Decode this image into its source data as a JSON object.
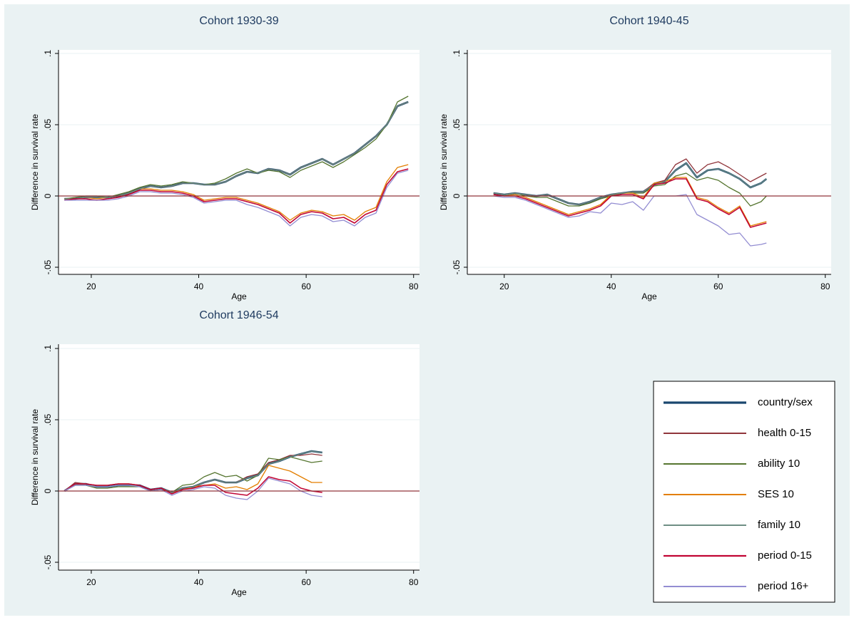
{
  "chart_data": [
    {
      "type": "line",
      "title": "Cohort 1930-39",
      "xlabel": "Age",
      "ylabel": "Difference in survival rate",
      "x": [
        15,
        17,
        19,
        21,
        23,
        25,
        27,
        29,
        31,
        33,
        35,
        37,
        39,
        41,
        43,
        45,
        47,
        49,
        51,
        53,
        55,
        57,
        59,
        61,
        63,
        65,
        67,
        69,
        71,
        73,
        75,
        77,
        79
      ],
      "xlim": [
        13.9,
        81.1
      ],
      "ylim": [
        -0.055,
        0.1025
      ],
      "xticks": [
        20,
        40,
        60,
        80
      ],
      "yticks": [
        {
          "value": -0.05,
          "label": "-.05"
        },
        0,
        {
          "value": 0.05,
          "label": ".05"
        },
        {
          "value": 0.1,
          "label": ".1"
        }
      ],
      "grid": true,
      "hline": 0,
      "series": [
        {
          "name": "country/sex",
          "color": "#1a476f",
          "width": 2.6,
          "values": [
            -0.002,
            -0.002,
            -0.001,
            -0.001,
            -0.001,
            0.0,
            0.002,
            0.005,
            0.007,
            0.006,
            0.007,
            0.009,
            0.009,
            0.008,
            0.008,
            0.01,
            0.014,
            0.017,
            0.016,
            0.019,
            0.018,
            0.015,
            0.02,
            0.023,
            0.026,
            0.022,
            0.026,
            0.03,
            0.036,
            0.042,
            0.05,
            0.063,
            0.066
          ]
        },
        {
          "name": "health 0-15",
          "color": "#90353b",
          "width": 1.3,
          "values": [
            -0.002,
            -0.002,
            -0.001,
            -0.001,
            -0.001,
            0.0,
            0.002,
            0.005,
            0.007,
            0.006,
            0.007,
            0.009,
            0.009,
            0.008,
            0.008,
            0.01,
            0.014,
            0.017,
            0.016,
            0.019,
            0.018,
            0.015,
            0.02,
            0.023,
            0.026,
            0.022,
            0.026,
            0.03,
            0.036,
            0.042,
            0.05,
            0.063,
            0.066
          ]
        },
        {
          "name": "ability 10",
          "color": "#55752f",
          "width": 1.3,
          "values": [
            -0.002,
            -0.001,
            0.0,
            0.0,
            -0.001,
            0.001,
            0.003,
            0.006,
            0.008,
            0.007,
            0.008,
            0.01,
            0.009,
            0.008,
            0.009,
            0.012,
            0.016,
            0.019,
            0.016,
            0.018,
            0.017,
            0.013,
            0.018,
            0.021,
            0.024,
            0.02,
            0.024,
            0.029,
            0.034,
            0.04,
            0.05,
            0.066,
            0.07
          ]
        },
        {
          "name": "SES 10",
          "color": "#e37e00",
          "width": 1.3,
          "values": [
            -0.002,
            -0.002,
            -0.001,
            -0.002,
            -0.001,
            0.0,
            0.002,
            0.005,
            0.005,
            0.004,
            0.004,
            0.003,
            0.001,
            -0.003,
            -0.002,
            -0.001,
            -0.001,
            -0.003,
            -0.005,
            -0.008,
            -0.011,
            -0.017,
            -0.012,
            -0.01,
            -0.011,
            -0.014,
            -0.013,
            -0.017,
            -0.011,
            -0.008,
            0.01,
            0.02,
            0.022
          ]
        },
        {
          "name": "family 10",
          "color": "#6e8e84",
          "width": 1.3,
          "values": [
            -0.002,
            -0.002,
            -0.001,
            -0.001,
            -0.001,
            0.0,
            0.002,
            0.005,
            0.007,
            0.006,
            0.007,
            0.009,
            0.009,
            0.008,
            0.008,
            0.01,
            0.014,
            0.017,
            0.016,
            0.019,
            0.018,
            0.015,
            0.02,
            0.023,
            0.026,
            0.022,
            0.026,
            0.03,
            0.036,
            0.042,
            0.05,
            0.063,
            0.066
          ]
        },
        {
          "name": "period 0-15",
          "color": "#c10534",
          "width": 1.6,
          "values": [
            -0.003,
            -0.002,
            -0.002,
            -0.003,
            -0.002,
            -0.001,
            0.001,
            0.004,
            0.004,
            0.003,
            0.003,
            0.002,
            0.0,
            -0.004,
            -0.003,
            -0.002,
            -0.002,
            -0.004,
            -0.006,
            -0.009,
            -0.012,
            -0.019,
            -0.013,
            -0.011,
            -0.012,
            -0.016,
            -0.015,
            -0.019,
            -0.013,
            -0.01,
            0.008,
            0.017,
            0.019
          ]
        },
        {
          "name": "period 16+",
          "color": "#938dd2",
          "width": 1.3,
          "values": [
            -0.003,
            -0.003,
            -0.003,
            -0.003,
            -0.003,
            -0.002,
            0.0,
            0.003,
            0.003,
            0.002,
            0.002,
            0.001,
            -0.001,
            -0.005,
            -0.004,
            -0.003,
            -0.003,
            -0.006,
            -0.008,
            -0.011,
            -0.014,
            -0.021,
            -0.015,
            -0.013,
            -0.014,
            -0.018,
            -0.017,
            -0.021,
            -0.015,
            -0.012,
            0.006,
            0.016,
            0.018
          ]
        }
      ]
    },
    {
      "type": "line",
      "title": "Cohort 1940-45",
      "xlabel": "Age",
      "ylabel": "Difference in survival rate",
      "x": [
        18,
        20,
        22,
        24,
        26,
        28,
        30,
        32,
        34,
        36,
        38,
        40,
        42,
        44,
        46,
        48,
        50,
        52,
        54,
        56,
        58,
        60,
        62,
        64,
        66,
        68,
        69
      ],
      "xlim": [
        13.1,
        81.1
      ],
      "ylim": [
        -0.055,
        0.1025
      ],
      "xticks": [
        20,
        40,
        60,
        80
      ],
      "yticks": [
        {
          "value": -0.05,
          "label": "-.05"
        },
        0,
        {
          "value": 0.05,
          "label": ".05"
        },
        {
          "value": 0.1,
          "label": ".1"
        }
      ],
      "grid": true,
      "hline": 0,
      "series": [
        {
          "name": "country/sex",
          "color": "#1a476f",
          "width": 2.6,
          "values": [
            0.002,
            0.001,
            0.002,
            0.001,
            0.0,
            0.001,
            -0.002,
            -0.005,
            -0.006,
            -0.004,
            -0.001,
            0.001,
            0.002,
            0.003,
            0.003,
            0.008,
            0.01,
            0.018,
            0.023,
            0.013,
            0.018,
            0.019,
            0.016,
            0.012,
            0.006,
            0.009,
            0.012
          ]
        },
        {
          "name": "health 0-15",
          "color": "#90353b",
          "width": 1.3,
          "values": [
            0.002,
            0.001,
            0.002,
            0.001,
            0.0,
            0.001,
            -0.002,
            -0.005,
            -0.006,
            -0.004,
            -0.001,
            0.001,
            0.002,
            0.003,
            0.003,
            0.009,
            0.011,
            0.022,
            0.026,
            0.016,
            0.022,
            0.024,
            0.02,
            0.015,
            0.01,
            0.014,
            0.016
          ]
        },
        {
          "name": "ability 10",
          "color": "#55752f",
          "width": 1.3,
          "values": [
            0.002,
            0.001,
            0.002,
            0.0,
            -0.001,
            -0.001,
            -0.004,
            -0.007,
            -0.007,
            -0.005,
            -0.002,
            0.0,
            0.002,
            0.002,
            0.002,
            0.007,
            0.008,
            0.014,
            0.016,
            0.011,
            0.013,
            0.011,
            0.006,
            0.002,
            -0.007,
            -0.004,
            0.0
          ]
        },
        {
          "name": "SES 10",
          "color": "#e37e00",
          "width": 1.3,
          "values": [
            0.001,
            0.0,
            0.001,
            -0.001,
            -0.004,
            -0.007,
            -0.01,
            -0.013,
            -0.011,
            -0.009,
            -0.006,
            0.001,
            0.002,
            0.002,
            -0.001,
            0.009,
            0.01,
            0.013,
            0.013,
            -0.001,
            -0.003,
            -0.008,
            -0.012,
            -0.007,
            -0.021,
            -0.019,
            -0.018
          ]
        },
        {
          "name": "family 10",
          "color": "#6e8e84",
          "width": 1.3,
          "values": [
            0.002,
            0.001,
            0.002,
            0.001,
            0.0,
            0.001,
            -0.002,
            -0.005,
            -0.006,
            -0.004,
            -0.001,
            0.001,
            0.002,
            0.003,
            0.003,
            0.008,
            0.01,
            0.018,
            0.023,
            0.013,
            0.018,
            0.019,
            0.016,
            0.012,
            0.006,
            0.009,
            0.012
          ]
        },
        {
          "name": "period 0-15",
          "color": "#c10534",
          "width": 1.6,
          "values": [
            0.001,
            0.0,
            0.0,
            -0.002,
            -0.005,
            -0.008,
            -0.011,
            -0.014,
            -0.012,
            -0.01,
            -0.007,
            0.0,
            0.001,
            0.001,
            -0.002,
            0.008,
            0.009,
            0.012,
            0.012,
            -0.002,
            -0.004,
            -0.009,
            -0.013,
            -0.008,
            -0.022,
            -0.02,
            -0.019
          ]
        },
        {
          "name": "period 16+",
          "color": "#938dd2",
          "width": 1.3,
          "values": [
            0.0,
            -0.001,
            -0.001,
            -0.003,
            -0.006,
            -0.009,
            -0.012,
            -0.015,
            -0.014,
            -0.011,
            -0.012,
            -0.005,
            -0.006,
            -0.004,
            -0.01,
            0.0,
            0.0,
            0.0,
            0.001,
            -0.013,
            -0.017,
            -0.021,
            -0.027,
            -0.026,
            -0.035,
            -0.034,
            -0.033
          ]
        }
      ]
    },
    {
      "type": "line",
      "title": "Cohort 1946-54",
      "xlabel": "Age",
      "ylabel": "Difference in survival rate",
      "x": [
        15,
        17,
        19,
        21,
        23,
        25,
        27,
        29,
        31,
        33,
        35,
        37,
        39,
        41,
        43,
        45,
        47,
        49,
        51,
        53,
        55,
        57,
        59,
        61,
        63
      ],
      "xlim": [
        13.9,
        81.1
      ],
      "ylim": [
        -0.0555,
        0.103
      ],
      "xticks": [
        20,
        40,
        60,
        80
      ],
      "yticks": [
        {
          "value": -0.05,
          "label": "-.05"
        },
        0,
        {
          "value": 0.05,
          "label": ".05"
        },
        {
          "value": 0.1,
          "label": ".1"
        }
      ],
      "grid": true,
      "hline": 0,
      "legend": "lower-right",
      "series": [
        {
          "name": "country/sex",
          "color": "#1a476f",
          "width": 2.6,
          "values": [
            0.0,
            0.005,
            0.005,
            0.003,
            0.003,
            0.004,
            0.004,
            0.004,
            0.001,
            0.002,
            -0.001,
            0.002,
            0.003,
            0.006,
            0.008,
            0.006,
            0.006,
            0.009,
            0.011,
            0.019,
            0.021,
            0.024,
            0.026,
            0.028,
            0.027
          ]
        },
        {
          "name": "health 0-15",
          "color": "#90353b",
          "width": 1.3,
          "values": [
            0.0,
            0.006,
            0.005,
            0.004,
            0.004,
            0.005,
            0.005,
            0.004,
            0.001,
            0.002,
            -0.001,
            0.002,
            0.003,
            0.006,
            0.008,
            0.006,
            0.006,
            0.01,
            0.012,
            0.02,
            0.022,
            0.025,
            0.025,
            0.026,
            0.025
          ]
        },
        {
          "name": "ability 10",
          "color": "#55752f",
          "width": 1.3,
          "values": [
            0.0,
            0.004,
            0.004,
            0.002,
            0.002,
            0.003,
            0.003,
            0.003,
            0.0,
            0.001,
            -0.001,
            0.004,
            0.005,
            0.01,
            0.013,
            0.01,
            0.011,
            0.007,
            0.011,
            0.023,
            0.022,
            0.024,
            0.022,
            0.02,
            0.021
          ]
        },
        {
          "name": "SES 10",
          "color": "#e37e00",
          "width": 1.3,
          "values": [
            0.0,
            0.005,
            0.005,
            0.004,
            0.004,
            0.005,
            0.005,
            0.004,
            0.001,
            0.002,
            -0.001,
            0.001,
            0.003,
            0.004,
            0.005,
            0.002,
            0.003,
            0.001,
            0.005,
            0.018,
            0.016,
            0.014,
            0.01,
            0.006,
            0.006
          ]
        },
        {
          "name": "family 10",
          "color": "#6e8e84",
          "width": 1.3,
          "values": [
            0.0,
            0.005,
            0.005,
            0.003,
            0.003,
            0.004,
            0.004,
            0.004,
            0.001,
            0.002,
            -0.001,
            0.002,
            0.003,
            0.006,
            0.008,
            0.006,
            0.006,
            0.009,
            0.011,
            0.019,
            0.021,
            0.024,
            0.026,
            0.028,
            0.027
          ]
        },
        {
          "name": "period 0-15",
          "color": "#c10534",
          "width": 1.6,
          "values": [
            0.0,
            0.005,
            0.005,
            0.004,
            0.004,
            0.005,
            0.005,
            0.004,
            0.001,
            0.002,
            -0.002,
            0.001,
            0.002,
            0.004,
            0.004,
            -0.001,
            -0.002,
            -0.003,
            0.002,
            0.01,
            0.008,
            0.007,
            0.002,
            0.0,
            -0.001
          ]
        },
        {
          "name": "period 16+",
          "color": "#938dd2",
          "width": 1.3,
          "values": [
            0.0,
            0.004,
            0.004,
            0.003,
            0.003,
            0.004,
            0.004,
            0.003,
            0.0,
            0.001,
            -0.003,
            0.0,
            0.001,
            0.003,
            0.002,
            -0.003,
            -0.005,
            -0.006,
            0.0,
            0.009,
            0.007,
            0.005,
            0.0,
            -0.003,
            -0.004
          ]
        }
      ]
    }
  ]
}
